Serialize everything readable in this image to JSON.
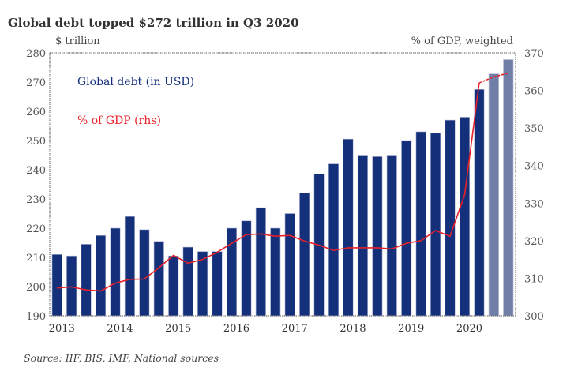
{
  "chart_data": {
    "type": "bar",
    "title": "Global debt topped $272 trillion in Q3 2020",
    "ylabel_left": "$ trillion",
    "ylabel_right": "% of GDP, weighted",
    "ylim_left": [
      190,
      280
    ],
    "ylim_right": [
      300,
      370
    ],
    "yticks_left": [
      "190",
      "200",
      "210",
      "220",
      "230",
      "240",
      "250",
      "260",
      "270",
      "280"
    ],
    "yticks_right": [
      "300",
      "310",
      "320",
      "330",
      "340",
      "350",
      "360",
      "370"
    ],
    "x_year_labels": [
      "2013",
      "2014",
      "2015",
      "2016",
      "2017",
      "2018",
      "2019",
      "2020"
    ],
    "quarters_per_year": 4,
    "series": [
      {
        "name": "Global debt (in USD)",
        "type": "bar",
        "axis": "left",
        "color": "#14307a",
        "estimate_color": "#6f7fa6",
        "estimate_count": 2,
        "values": [
          211,
          210.5,
          214.5,
          217.5,
          220,
          224,
          219.5,
          215.5,
          210.5,
          213.5,
          212,
          212,
          220,
          222.5,
          227,
          220,
          225,
          232,
          238.5,
          242,
          250.5,
          245,
          244.5,
          245,
          250,
          253,
          252.5,
          257,
          258,
          267.5,
          272.8,
          277.7
        ]
      },
      {
        "name": "% of GDP (rhs)",
        "type": "line",
        "axis": "right",
        "color": "#e8202a",
        "dashed_from_index": 29,
        "values": [
          307.4,
          307.7,
          306.9,
          306.6,
          308.7,
          309.7,
          309.8,
          312.8,
          316.1,
          314,
          315,
          316.9,
          319.3,
          321.6,
          321.8,
          321.2,
          321.4,
          319.9,
          318.8,
          317.4,
          318.1,
          318.1,
          318.1,
          317.8,
          319.3,
          320,
          322.7,
          321.2,
          332.2,
          362,
          363.6,
          364.6
        ]
      }
    ],
    "legend_placement": "top-left inside",
    "grid": false
  },
  "source": "Source: IIF, BIS, IMF, National sources"
}
